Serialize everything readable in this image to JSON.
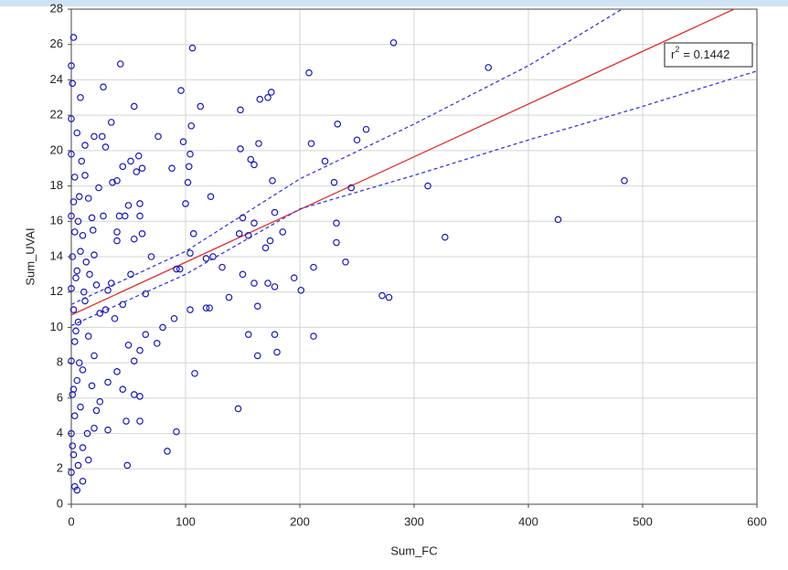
{
  "chart_data": {
    "type": "scatter",
    "x_label": "Sum_FC",
    "y_label": "Sum_UVAI",
    "xlim": [
      0,
      600
    ],
    "ylim": [
      0,
      28
    ],
    "xticks": [
      0,
      100,
      200,
      300,
      400,
      500,
      600
    ],
    "yticks": [
      0,
      2,
      4,
      6,
      8,
      10,
      12,
      14,
      16,
      18,
      20,
      22,
      24,
      26,
      28
    ],
    "grid": true,
    "annotation": {
      "base": "r",
      "sup": "2",
      "rest": "= 0.1442"
    },
    "series": [
      {
        "color": "#1a1ab8",
        "x": [
          2,
          0,
          1,
          8,
          0,
          43,
          28,
          55,
          35,
          96,
          106,
          113,
          148,
          208,
          282,
          365,
          172,
          175,
          165,
          233,
          258,
          250,
          210,
          105,
          98,
          76,
          20,
          27,
          30,
          5,
          12,
          160,
          148,
          164,
          222,
          157,
          245,
          230,
          176,
          312,
          484,
          426,
          327,
          232,
          232,
          240,
          212,
          195,
          201,
          272,
          278,
          178,
          185,
          170,
          160,
          150,
          147,
          155,
          174,
          178,
          172,
          160,
          163,
          150,
          124,
          118,
          104,
          107,
          95,
          92,
          90,
          118,
          121,
          104,
          132,
          138,
          155,
          163,
          178,
          180,
          212,
          108,
          146,
          92,
          84,
          49,
          122,
          102,
          100,
          103,
          104,
          88,
          57,
          59,
          45,
          52,
          62,
          40,
          36,
          60,
          50,
          42,
          47,
          60,
          28,
          40,
          55,
          62,
          40,
          70,
          52,
          35,
          32,
          45,
          30,
          38,
          65,
          80,
          65,
          75,
          50,
          55,
          60,
          40,
          45,
          55,
          60,
          32,
          25,
          48,
          60,
          32,
          20,
          10,
          15,
          3,
          5,
          10,
          0,
          2,
          0,
          3,
          1,
          5,
          0,
          3,
          6,
          2,
          0,
          5,
          8,
          3,
          10,
          0,
          7,
          3,
          0,
          12,
          15,
          18,
          20,
          16,
          22,
          12,
          25,
          15,
          20,
          10,
          18,
          8,
          22,
          14,
          6,
          1,
          4,
          1,
          6,
          2,
          9,
          11,
          4,
          7,
          2,
          13,
          19,
          24
        ],
        "values": [
          26.4,
          24.8,
          23.8,
          23.0,
          21.8,
          24.9,
          23.6,
          22.5,
          21.6,
          23.4,
          25.8,
          22.5,
          22.3,
          24.4,
          26.1,
          24.7,
          23.0,
          23.3,
          22.9,
          21.5,
          21.2,
          20.6,
          20.4,
          21.4,
          20.5,
          20.8,
          20.8,
          20.8,
          20.2,
          21.0,
          20.3,
          19.2,
          20.1,
          20.4,
          19.4,
          19.5,
          17.9,
          18.2,
          18.3,
          18.0,
          18.3,
          16.1,
          15.1,
          15.9,
          14.8,
          13.7,
          13.4,
          12.8,
          12.1,
          11.8,
          11.7,
          16.5,
          15.4,
          14.5,
          15.9,
          16.2,
          15.3,
          15.2,
          14.9,
          12.3,
          12.5,
          12.5,
          11.2,
          13.0,
          14.0,
          13.9,
          14.2,
          15.3,
          13.3,
          13.3,
          10.5,
          11.1,
          11.1,
          11.0,
          13.4,
          11.7,
          9.6,
          8.4,
          9.6,
          8.6,
          9.5,
          7.4,
          5.4,
          4.1,
          3.0,
          2.2,
          17.4,
          18.2,
          17.0,
          19.1,
          19.8,
          19.0,
          18.8,
          19.7,
          19.1,
          19.4,
          19.0,
          18.3,
          18.2,
          17.0,
          16.9,
          16.3,
          16.3,
          16.3,
          16.3,
          15.4,
          15.0,
          15.3,
          14.9,
          14.0,
          13.0,
          12.5,
          12.1,
          11.3,
          11.0,
          10.5,
          11.9,
          10.0,
          9.6,
          9.1,
          9.0,
          8.1,
          8.7,
          7.5,
          6.5,
          6.2,
          6.1,
          6.9,
          5.8,
          4.7,
          4.7,
          4.2,
          4.3,
          3.2,
          2.5,
          1.0,
          0.8,
          1.3,
          1.8,
          2.8,
          4.0,
          5.0,
          6.2,
          7.0,
          8.1,
          9.2,
          10.3,
          11.0,
          12.2,
          13.2,
          14.3,
          15.4,
          15.2,
          16.3,
          17.4,
          18.5,
          19.8,
          18.6,
          17.3,
          16.2,
          14.1,
          13.0,
          12.4,
          11.5,
          10.8,
          9.5,
          8.4,
          7.6,
          6.7,
          5.5,
          5.3,
          4.0,
          2.2,
          3.3,
          12.8,
          14.0,
          16.0,
          17.1,
          19.4,
          12.0,
          9.8,
          8.0,
          6.5,
          13.7,
          15.5,
          17.9
        ]
      }
    ],
    "lines": [
      {
        "color": "#e03030",
        "dash": false,
        "x": [
          0,
          580
        ],
        "values": [
          10.7,
          28
        ]
      },
      {
        "color": "#3a3ad8",
        "dash": true,
        "x": [
          0,
          100,
          200,
          300,
          400,
          482
        ],
        "values": [
          11.3,
          14.3,
          18.4,
          21.5,
          24.8,
          28
        ]
      },
      {
        "color": "#3a3ad8",
        "dash": true,
        "x": [
          0,
          100,
          200,
          300,
          400,
          500,
          600
        ],
        "values": [
          10.1,
          13.0,
          16.7,
          18.6,
          20.6,
          22.5,
          24.5
        ]
      }
    ]
  }
}
